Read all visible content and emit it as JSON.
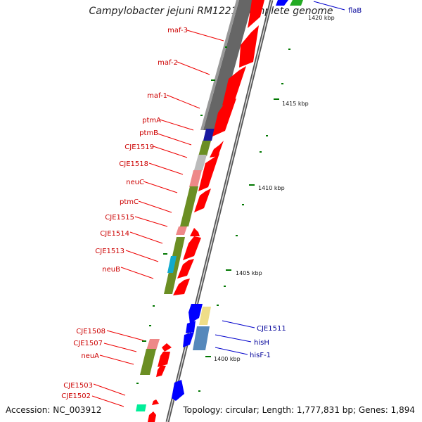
{
  "title": "Campylobacter jejuni RM1221, complete genome",
  "footer": {
    "accession": "Accession: NC_003912",
    "summary": "Topology: circular; Length: 1,777,831 bp; Genes: 1,894"
  },
  "scale_labels": {
    "kbp1420": "1420 kbp",
    "kbp1415": "1415 kbp",
    "kbp1410": "1410 kbp",
    "kbp1405": "1405 kbp",
    "kbp1400": "1400 kbp"
  },
  "genes_left": {
    "maf3": "maf-3",
    "maf2": "maf-2",
    "maf1": "maf-1",
    "ptmA": "ptmA",
    "ptmB": "ptmB",
    "cje1519": "CJE1519",
    "cje1518": "CJE1518",
    "neuC": "neuC",
    "ptmC": "ptmC",
    "cje1515": "CJE1515",
    "cje1514": "CJE1514",
    "cje1513": "CJE1513",
    "neuB": "neuB",
    "cje1508": "CJE1508",
    "cje1507": "CJE1507",
    "neuA": "neuA",
    "cje1503": "CJE1503",
    "cje1502": "CJE1502"
  },
  "genes_right": {
    "flaB": "flaB",
    "cje1511": "CJE1511",
    "hisH": "hisH",
    "hisF1": "hisF-1"
  },
  "colors": {
    "cds_reverse": "#ff0000",
    "cds_forward": "#0000ff",
    "backbone": "#666666",
    "gc_tick": "#007700",
    "label_reverse": "#cc0000",
    "label_forward": "#000099",
    "cog_olive": "#6b8e23",
    "cog_gray": "#777777",
    "cog_pink": "#ee8888",
    "cog_cyan": "#11aacc",
    "cog_yellow": "#eedd88",
    "cog_steel": "#5588bb"
  }
}
